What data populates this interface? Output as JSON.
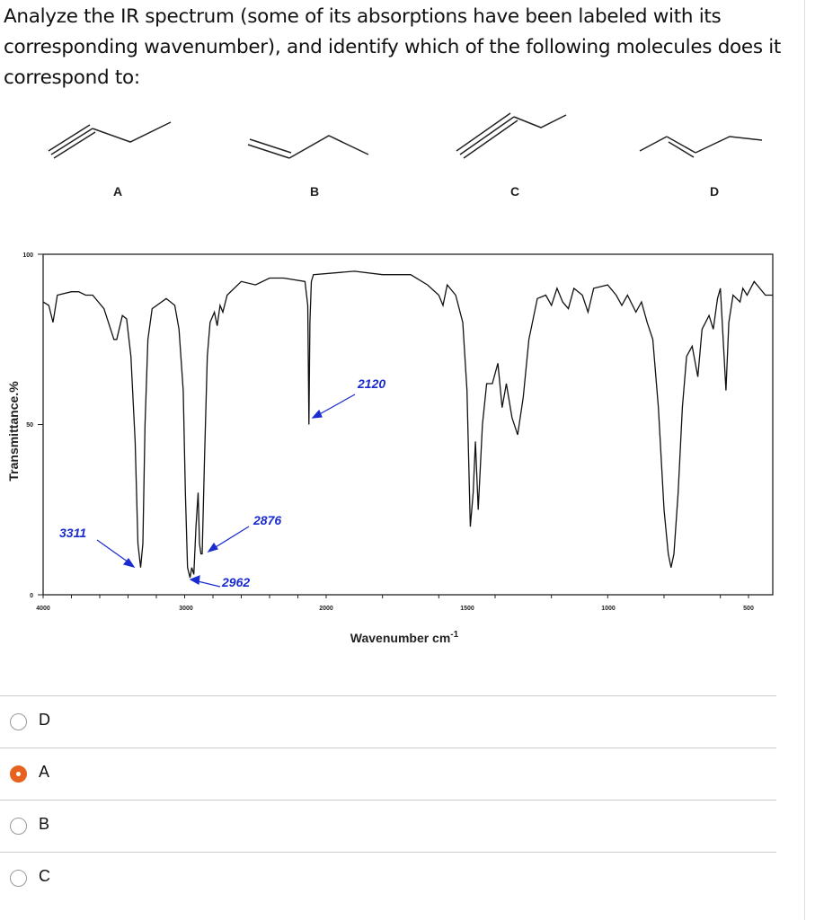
{
  "question": "Analyze the IR spectrum (some of its absorptions have been labeled with its corresponding wavenumber), and identify which of the following molecules does it correspond to:",
  "molecules": [
    {
      "label": "A"
    },
    {
      "label": "B"
    },
    {
      "label": "C"
    },
    {
      "label": "D"
    }
  ],
  "chart_data": {
    "type": "line",
    "xlabel": "Wavenumber cm-1",
    "ylabel": "Transmittance.%",
    "xlim": [
      4000,
      400
    ],
    "ylim": [
      0,
      100
    ],
    "x_ticks": [
      "4000",
      "3000",
      "2000",
      "1500",
      "1000",
      "500"
    ],
    "y_ticks": [
      "100",
      "50",
      "0"
    ],
    "annotations": [
      "3311",
      "2962",
      "2876",
      "2120"
    ],
    "series": [
      {
        "points": [
          [
            4000,
            86
          ],
          [
            3960,
            85
          ],
          [
            3930,
            80
          ],
          [
            3900,
            88
          ],
          [
            3800,
            89
          ],
          [
            3750,
            89
          ],
          [
            3700,
            88
          ],
          [
            3650,
            88
          ],
          [
            3570,
            84
          ],
          [
            3500,
            75
          ],
          [
            3480,
            75
          ],
          [
            3440,
            82
          ],
          [
            3410,
            81
          ],
          [
            3380,
            70
          ],
          [
            3350,
            45
          ],
          [
            3330,
            15
          ],
          [
            3311,
            8
          ],
          [
            3295,
            15
          ],
          [
            3280,
            50
          ],
          [
            3260,
            75
          ],
          [
            3230,
            84
          ],
          [
            3130,
            87
          ],
          [
            3070,
            85
          ],
          [
            3040,
            78
          ],
          [
            3010,
            60
          ],
          [
            2995,
            30
          ],
          [
            2980,
            8
          ],
          [
            2962,
            5
          ],
          [
            2950,
            8
          ],
          [
            2935,
            6
          ],
          [
            2920,
            20
          ],
          [
            2905,
            30
          ],
          [
            2895,
            15
          ],
          [
            2885,
            12
          ],
          [
            2876,
            12
          ],
          [
            2860,
            40
          ],
          [
            2840,
            70
          ],
          [
            2820,
            80
          ],
          [
            2790,
            83
          ],
          [
            2770,
            79
          ],
          [
            2750,
            85
          ],
          [
            2730,
            83
          ],
          [
            2700,
            88
          ],
          [
            2600,
            92
          ],
          [
            2500,
            91
          ],
          [
            2400,
            93
          ],
          [
            2300,
            93
          ],
          [
            2150,
            92
          ],
          [
            2130,
            85
          ],
          [
            2122,
            50
          ],
          [
            2115,
            80
          ],
          [
            2105,
            92
          ],
          [
            2090,
            94
          ],
          [
            1900,
            95
          ],
          [
            1800,
            94
          ],
          [
            1700,
            94
          ],
          [
            1640,
            91
          ],
          [
            1600,
            88
          ],
          [
            1585,
            85
          ],
          [
            1570,
            91
          ],
          [
            1540,
            88
          ],
          [
            1515,
            80
          ],
          [
            1500,
            60
          ],
          [
            1488,
            20
          ],
          [
            1478,
            30
          ],
          [
            1470,
            45
          ],
          [
            1460,
            25
          ],
          [
            1445,
            50
          ],
          [
            1430,
            62
          ],
          [
            1410,
            62
          ],
          [
            1390,
            68
          ],
          [
            1375,
            55
          ],
          [
            1360,
            62
          ],
          [
            1340,
            52
          ],
          [
            1320,
            47
          ],
          [
            1300,
            58
          ],
          [
            1280,
            75
          ],
          [
            1250,
            87
          ],
          [
            1220,
            88
          ],
          [
            1200,
            85
          ],
          [
            1180,
            90
          ],
          [
            1160,
            86
          ],
          [
            1140,
            84
          ],
          [
            1120,
            90
          ],
          [
            1090,
            88
          ],
          [
            1070,
            83
          ],
          [
            1050,
            90
          ],
          [
            1000,
            91
          ],
          [
            970,
            88
          ],
          [
            950,
            85
          ],
          [
            930,
            88
          ],
          [
            900,
            83
          ],
          [
            880,
            86
          ],
          [
            860,
            80
          ],
          [
            840,
            75
          ],
          [
            820,
            55
          ],
          [
            800,
            25
          ],
          [
            785,
            12
          ],
          [
            775,
            8
          ],
          [
            765,
            12
          ],
          [
            750,
            30
          ],
          [
            735,
            55
          ],
          [
            720,
            70
          ],
          [
            700,
            73
          ],
          [
            680,
            64
          ],
          [
            665,
            78
          ],
          [
            640,
            82
          ],
          [
            625,
            78
          ],
          [
            610,
            87
          ],
          [
            600,
            90
          ],
          [
            580,
            60
          ],
          [
            570,
            80
          ],
          [
            555,
            88
          ],
          [
            530,
            86
          ],
          [
            520,
            90
          ],
          [
            505,
            88
          ],
          [
            480,
            92
          ],
          [
            440,
            88
          ],
          [
            415,
            88
          ]
        ]
      }
    ]
  },
  "options": [
    {
      "label": "D",
      "selected": false
    },
    {
      "label": "A",
      "selected": true
    },
    {
      "label": "B",
      "selected": false
    },
    {
      "label": "C",
      "selected": false
    }
  ],
  "colors": {
    "selected": "#e8621f",
    "annotation": "#1a2ccf"
  }
}
